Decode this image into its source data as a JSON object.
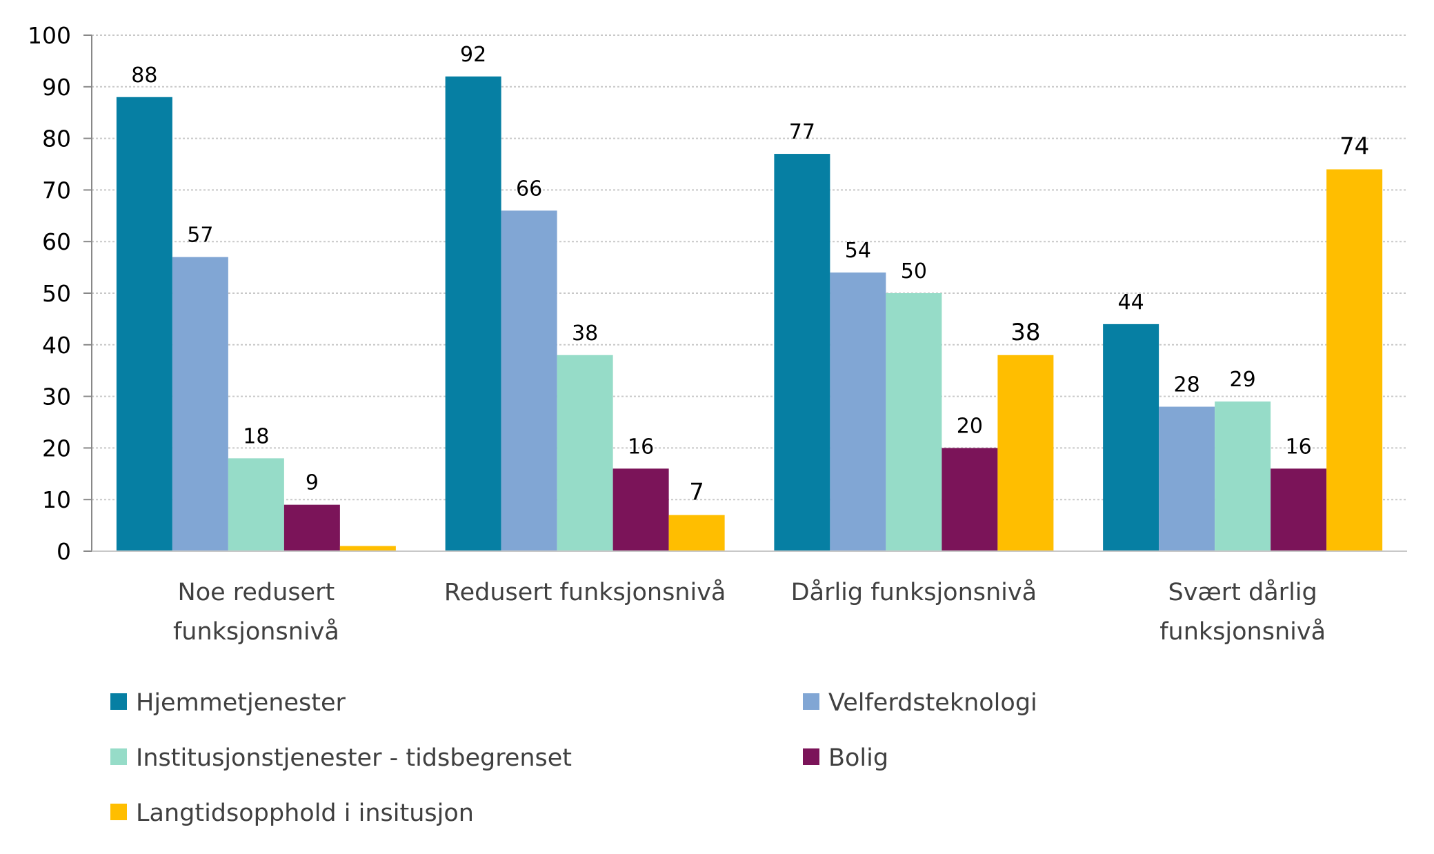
{
  "chart_data": {
    "type": "bar",
    "title": "",
    "xlabel": "",
    "ylabel": "",
    "ylim": [
      0,
      100
    ],
    "yticks": [
      0,
      10,
      20,
      30,
      40,
      50,
      60,
      70,
      80,
      90,
      100
    ],
    "grid": true,
    "legend_position": "bottom",
    "categories": [
      [
        "Noe redusert",
        "funksjonsnivå"
      ],
      [
        "Redusert funksjonsnivå"
      ],
      [
        "Dårlig funksjonsnivå"
      ],
      [
        "Svært dårlig",
        "funksjonsnivå"
      ]
    ],
    "series": [
      {
        "name": "Hjemmetjenester",
        "color": "#067fa3",
        "values": [
          88,
          92,
          77,
          44
        ],
        "labels": [
          "88",
          "92",
          "77",
          "44"
        ]
      },
      {
        "name": "Velferdsteknologi",
        "color": "#81a6d4",
        "values": [
          57,
          66,
          54,
          28
        ],
        "labels": [
          "57",
          "66",
          "54",
          "28"
        ]
      },
      {
        "name": "Institusjonstjenester - tidsbegrenset",
        "color": "#96dcc8",
        "values": [
          18,
          38,
          50,
          29
        ],
        "labels": [
          "18",
          "38",
          "50",
          "29"
        ]
      },
      {
        "name": "Bolig",
        "color": "#7b1459",
        "values": [
          9,
          16,
          20,
          16
        ],
        "labels": [
          "9",
          "16",
          "20",
          "16"
        ]
      },
      {
        "name": "Langtidsopphold i insitusjon",
        "color": "#ffbe00",
        "values": [
          1,
          7,
          38,
          74
        ],
        "labels": [
          "",
          "7",
          "38",
          "74"
        ]
      }
    ]
  }
}
